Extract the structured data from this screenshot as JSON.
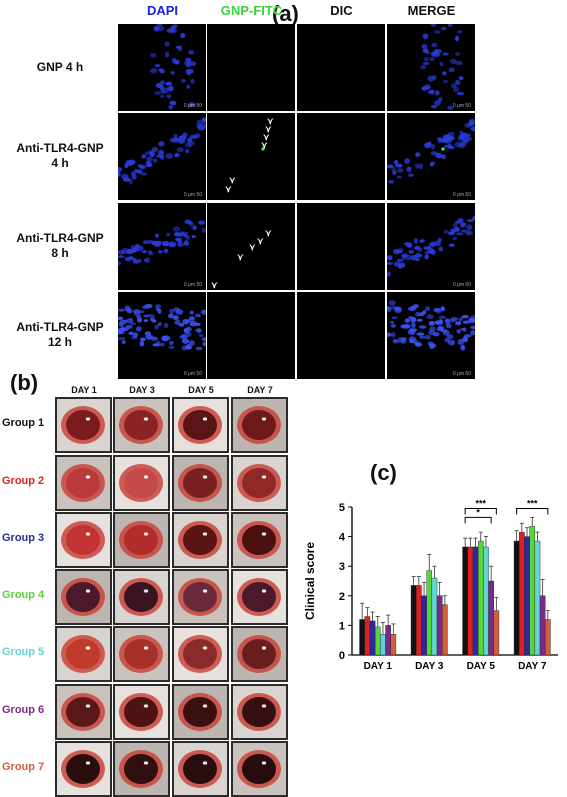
{
  "panel_a": {
    "label": "(a)",
    "columns": [
      {
        "label": "DAPI",
        "color": "#2020e0"
      },
      {
        "label": "GNP-FITC",
        "color": "#39d43a"
      },
      {
        "label": "DIC",
        "color": "#111111"
      },
      {
        "label": "MERGE",
        "color": "#111111"
      }
    ],
    "rows": [
      {
        "line1": "GNP 4 h",
        "line2": ""
      },
      {
        "line1": "Anti-TLR4-GNP",
        "line2": "4 h"
      },
      {
        "line1": "Anti-TLR4-GNP",
        "line2": "8 h"
      },
      {
        "line1": "Anti-TLR4-GNP",
        "line2": "12 h"
      }
    ],
    "scale_text": "0 μm 50"
  },
  "panel_b": {
    "label": "(b)",
    "days": [
      "DAY 1",
      "DAY 3",
      "DAY 5",
      "DAY 7"
    ],
    "groups": [
      {
        "label": "Group 1",
        "color": "#111111"
      },
      {
        "label": "Group 2",
        "color": "#e02020"
      },
      {
        "label": "Group 3",
        "color": "#2a2aa0"
      },
      {
        "label": "Group 4",
        "color": "#5ad43a"
      },
      {
        "label": "Group 5",
        "color": "#5fd6d2"
      },
      {
        "label": "Group 6",
        "color": "#7a2a8a"
      },
      {
        "label": "Group 7",
        "color": "#d0603a"
      }
    ]
  },
  "panel_c": {
    "label": "(c)",
    "significance": [
      "***",
      "*",
      "***"
    ]
  },
  "chart_data": {
    "type": "bar",
    "title": "",
    "xlabel": "",
    "ylabel": "Clinical score",
    "ylim": [
      0,
      5
    ],
    "yticks": [
      "0",
      "1",
      "2",
      "3",
      "4",
      "5"
    ],
    "categories": [
      "DAY 1",
      "DAY 3",
      "DAY 5",
      "DAY 7"
    ],
    "series": [
      {
        "color": "#111111",
        "values": [
          1.2,
          2.35,
          3.65,
          3.85
        ],
        "errors": [
          0.55,
          0.3,
          0.3,
          0.35
        ]
      },
      {
        "color": "#e02020",
        "values": [
          1.3,
          2.35,
          3.65,
          4.15
        ],
        "errors": [
          0.3,
          0.3,
          0.3,
          0.3
        ]
      },
      {
        "color": "#2a2aa0",
        "values": [
          1.15,
          2.0,
          3.65,
          4.0
        ],
        "errors": [
          0.3,
          0.45,
          0.3,
          0.3
        ]
      },
      {
        "color": "#5ad43a",
        "values": [
          0.95,
          2.85,
          3.85,
          4.35
        ],
        "errors": [
          0.35,
          0.55,
          0.3,
          0.3
        ]
      },
      {
        "color": "#5fd6d2",
        "values": [
          0.7,
          2.6,
          3.65,
          3.85
        ],
        "errors": [
          0.4,
          0.4,
          0.35,
          0.3
        ]
      },
      {
        "color": "#7a2a8a",
        "values": [
          1.0,
          2.0,
          2.5,
          2.0
        ],
        "errors": [
          0.35,
          0.45,
          0.5,
          0.55
        ]
      },
      {
        "color": "#d0603a",
        "values": [
          0.7,
          1.7,
          1.5,
          1.2
        ],
        "errors": [
          0.35,
          0.3,
          0.45,
          0.3
        ]
      }
    ]
  }
}
